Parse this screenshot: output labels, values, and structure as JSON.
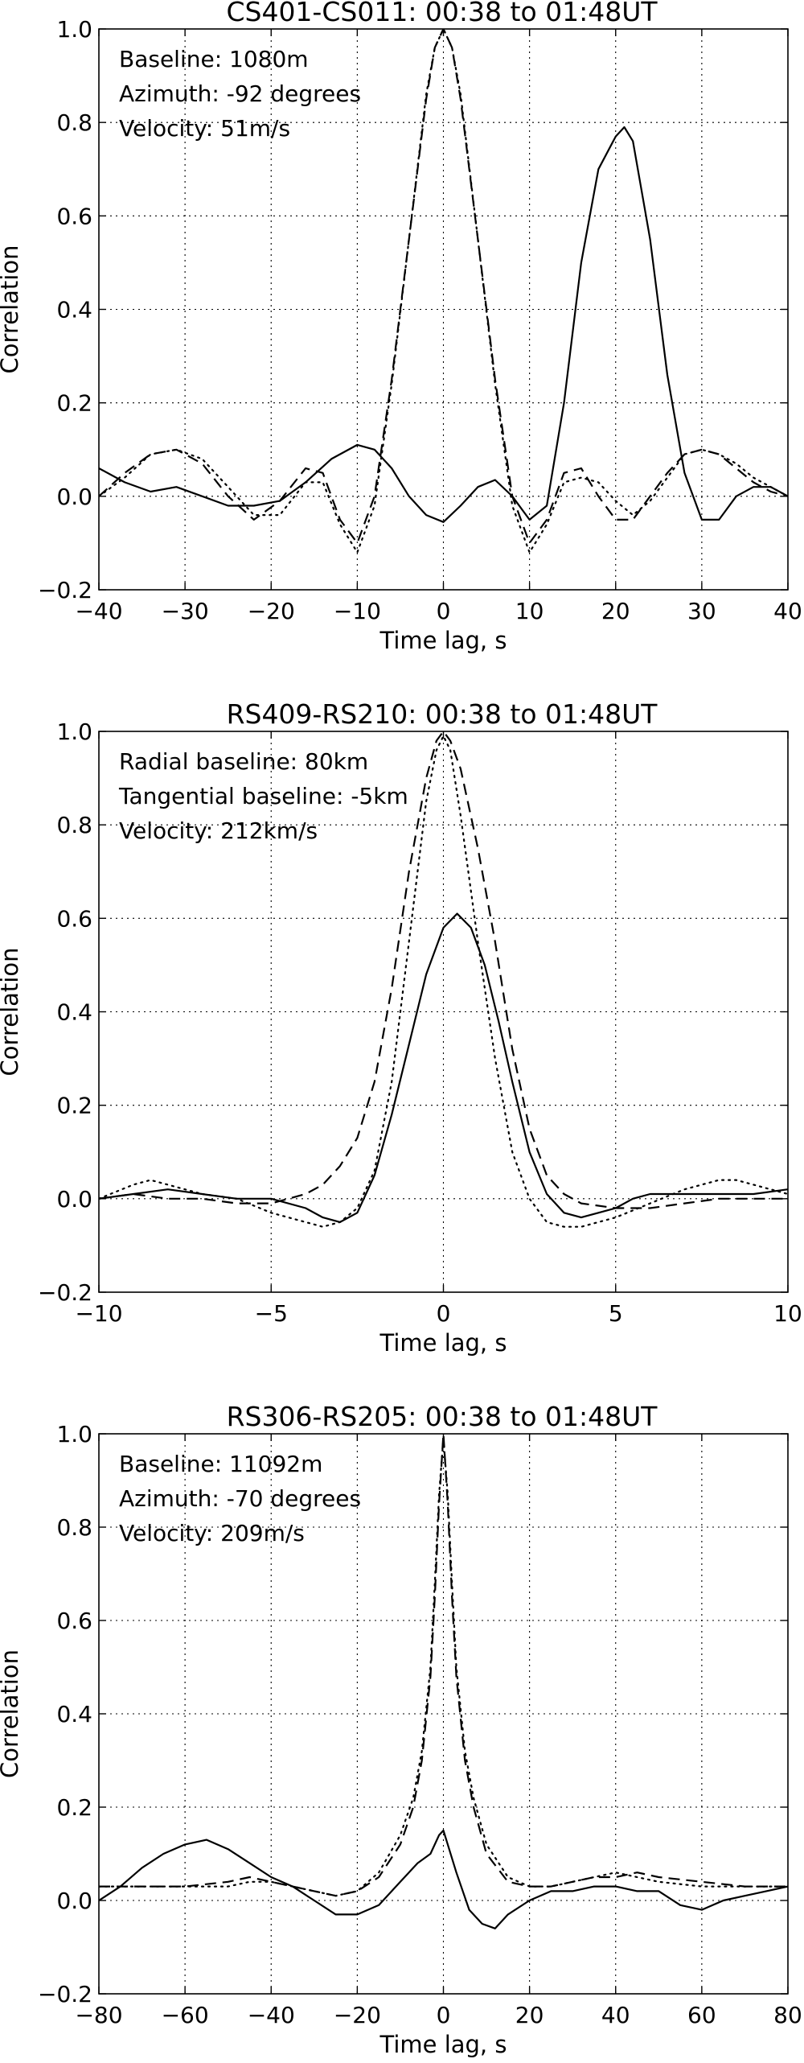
{
  "chart_data": [
    {
      "type": "line",
      "title": "CS401-CS011: 00:38 to 01:48UT",
      "xlabel": "Time lag, s",
      "ylabel": "Correlation",
      "xlim": [
        -40,
        40
      ],
      "ylim": [
        -0.2,
        1.0
      ],
      "xticks": [
        "−40",
        "−30",
        "−20",
        "−10",
        "0",
        "10",
        "20",
        "30",
        "40"
      ],
      "yticks": [
        "−0.2",
        "0.0",
        "0.2",
        "0.4",
        "0.6",
        "0.8",
        "1.0"
      ],
      "grid": true,
      "annotations": [
        "Baseline: 1080m",
        "Azimuth: -92 degrees",
        "Velocity: 51m/s"
      ],
      "series": [
        {
          "style": "solid",
          "x": [
            -40,
            -37,
            -34,
            -31,
            -28,
            -25,
            -22,
            -19,
            -16,
            -13,
            -10,
            -8,
            -6,
            -4,
            -2,
            0,
            2,
            4,
            6,
            8,
            10,
            12,
            14,
            16,
            18,
            20,
            21,
            22,
            24,
            26,
            28,
            30,
            32,
            34,
            36,
            38,
            40
          ],
          "y": [
            0.06,
            0.03,
            0.01,
            0.02,
            0.0,
            -0.02,
            -0.02,
            -0.01,
            0.03,
            0.08,
            0.11,
            0.1,
            0.06,
            0.0,
            -0.04,
            -0.055,
            -0.02,
            0.02,
            0.035,
            0.0,
            -0.05,
            -0.02,
            0.2,
            0.5,
            0.7,
            0.77,
            0.79,
            0.76,
            0.55,
            0.26,
            0.05,
            -0.05,
            -0.05,
            0.0,
            0.02,
            0.02,
            0.0
          ]
        },
        {
          "style": "dashed",
          "x": [
            -40,
            -37,
            -34,
            -31,
            -28,
            -25,
            -22,
            -19,
            -16,
            -14,
            -12,
            -10,
            -8,
            -6,
            -4,
            -2,
            -1,
            0,
            1,
            2,
            4,
            6,
            8,
            10,
            12,
            14,
            16,
            18,
            20,
            22,
            24,
            26,
            28,
            30,
            32,
            34,
            36,
            38,
            40
          ],
          "y": [
            0.0,
            0.05,
            0.09,
            0.1,
            0.07,
            0.0,
            -0.05,
            -0.01,
            0.06,
            0.05,
            -0.05,
            -0.1,
            0.0,
            0.25,
            0.55,
            0.85,
            0.96,
            1.0,
            0.96,
            0.85,
            0.55,
            0.25,
            0.0,
            -0.1,
            -0.05,
            0.05,
            0.06,
            0.0,
            -0.05,
            -0.05,
            0.0,
            0.05,
            0.09,
            0.1,
            0.09,
            0.06,
            0.03,
            0.01,
            0.0
          ]
        },
        {
          "style": "dotted",
          "x": [
            -40,
            -37,
            -34,
            -31,
            -28,
            -25,
            -22,
            -19,
            -16,
            -14,
            -12,
            -10,
            -8,
            -6,
            -4,
            -2,
            -1,
            0,
            1,
            2,
            4,
            6,
            8,
            10,
            12,
            14,
            16,
            18,
            20,
            22,
            24,
            26,
            28,
            30,
            32,
            34,
            36,
            38,
            40
          ],
          "y": [
            0.0,
            0.04,
            0.09,
            0.1,
            0.08,
            0.02,
            -0.04,
            -0.04,
            0.03,
            0.03,
            -0.06,
            -0.12,
            -0.02,
            0.24,
            0.55,
            0.86,
            0.96,
            1.0,
            0.96,
            0.86,
            0.55,
            0.24,
            -0.02,
            -0.12,
            -0.06,
            0.03,
            0.04,
            0.03,
            -0.01,
            -0.04,
            -0.01,
            0.04,
            0.09,
            0.1,
            0.09,
            0.07,
            0.04,
            0.02,
            0.0
          ]
        }
      ]
    },
    {
      "type": "line",
      "title": "RS409-RS210: 00:38 to 01:48UT",
      "xlabel": "Time lag, s",
      "ylabel": "Correlation",
      "xlim": [
        -10,
        10
      ],
      "ylim": [
        -0.2,
        1.0
      ],
      "xticks": [
        "−10",
        "−5",
        "0",
        "5",
        "10"
      ],
      "yticks": [
        "−0.2",
        "0.0",
        "0.2",
        "0.4",
        "0.6",
        "0.8",
        "1.0"
      ],
      "grid": true,
      "annotations": [
        "Radial baseline: 80km",
        "Tangential baseline: -5km",
        "Velocity: 212km/s"
      ],
      "series": [
        {
          "style": "solid",
          "x": [
            -10,
            -9,
            -8,
            -7,
            -6,
            -5,
            -4,
            -3.5,
            -3,
            -2.5,
            -2,
            -1.5,
            -1,
            -0.5,
            0,
            0.4,
            0.8,
            1.2,
            1.6,
            2,
            2.5,
            3,
            3.5,
            4,
            4.5,
            5,
            5.5,
            6,
            7,
            8,
            9,
            10
          ],
          "y": [
            0.0,
            0.01,
            0.02,
            0.01,
            0.0,
            0.0,
            -0.02,
            -0.04,
            -0.05,
            -0.03,
            0.05,
            0.18,
            0.33,
            0.48,
            0.58,
            0.61,
            0.58,
            0.5,
            0.38,
            0.25,
            0.1,
            0.01,
            -0.03,
            -0.04,
            -0.03,
            -0.02,
            0.0,
            0.01,
            0.01,
            0.01,
            0.01,
            0.02
          ]
        },
        {
          "style": "dashed",
          "x": [
            -10,
            -9,
            -8,
            -7,
            -6,
            -5,
            -4,
            -3.5,
            -3,
            -2.5,
            -2,
            -1.5,
            -1,
            -0.5,
            -0.2,
            0,
            0.2,
            0.5,
            1,
            1.5,
            2,
            2.5,
            3,
            3.5,
            4,
            5,
            6,
            7,
            8,
            9,
            10
          ],
          "y": [
            0.0,
            0.01,
            0.0,
            0.0,
            -0.01,
            -0.01,
            0.01,
            0.03,
            0.07,
            0.13,
            0.25,
            0.45,
            0.7,
            0.9,
            0.98,
            1.0,
            0.98,
            0.92,
            0.75,
            0.55,
            0.32,
            0.15,
            0.05,
            0.01,
            -0.01,
            -0.02,
            -0.02,
            -0.01,
            0.0,
            0.0,
            0.0
          ]
        },
        {
          "style": "dotted",
          "x": [
            -10,
            -9,
            -8.5,
            -8,
            -7,
            -6,
            -5,
            -4,
            -3.5,
            -3,
            -2.5,
            -2,
            -1.5,
            -1,
            -0.5,
            -0.2,
            0,
            0.2,
            0.5,
            1,
            1.5,
            2,
            2.5,
            3,
            3.5,
            4,
            5,
            6,
            7,
            8,
            8.5,
            9,
            10
          ],
          "y": [
            0.0,
            0.03,
            0.04,
            0.03,
            0.01,
            0.0,
            -0.03,
            -0.05,
            -0.06,
            -0.05,
            -0.02,
            0.06,
            0.25,
            0.55,
            0.85,
            0.96,
            0.99,
            0.96,
            0.82,
            0.55,
            0.3,
            0.1,
            0.0,
            -0.05,
            -0.06,
            -0.06,
            -0.04,
            -0.01,
            0.02,
            0.04,
            0.04,
            0.03,
            0.01
          ]
        }
      ]
    },
    {
      "type": "line",
      "title": "RS306-RS205: 00:38 to 01:48UT",
      "xlabel": "Time lag, s",
      "ylabel": "Correlation",
      "xlim": [
        -80,
        80
      ],
      "ylim": [
        -0.2,
        1.0
      ],
      "xticks": [
        "−80",
        "−60",
        "−40",
        "−20",
        "0",
        "20",
        "40",
        "60",
        "80"
      ],
      "yticks": [
        "−0.2",
        "0.0",
        "0.2",
        "0.4",
        "0.6",
        "0.8",
        "1.0"
      ],
      "grid": true,
      "annotations": [
        "Baseline: 11092m",
        "Azimuth: -70 degrees",
        "Velocity: 209m/s"
      ],
      "series": [
        {
          "style": "solid",
          "x": [
            -80,
            -75,
            -70,
            -65,
            -60,
            -55,
            -50,
            -45,
            -40,
            -35,
            -30,
            -25,
            -20,
            -15,
            -10,
            -6,
            -3,
            -1,
            0,
            1,
            3,
            6,
            9,
            12,
            15,
            20,
            25,
            30,
            35,
            40,
            45,
            50,
            55,
            60,
            65,
            70,
            75,
            80
          ],
          "y": [
            0.0,
            0.03,
            0.07,
            0.1,
            0.12,
            0.13,
            0.11,
            0.08,
            0.05,
            0.03,
            0.0,
            -0.03,
            -0.03,
            -0.01,
            0.04,
            0.08,
            0.1,
            0.14,
            0.15,
            0.12,
            0.06,
            -0.02,
            -0.05,
            -0.06,
            -0.03,
            0.0,
            0.02,
            0.02,
            0.03,
            0.03,
            0.02,
            0.02,
            -0.01,
            -0.02,
            0.0,
            0.01,
            0.02,
            0.03
          ]
        },
        {
          "style": "dashed",
          "x": [
            -80,
            -70,
            -60,
            -50,
            -45,
            -40,
            -35,
            -30,
            -25,
            -20,
            -15,
            -10,
            -7,
            -5,
            -3,
            -2,
            -1,
            0,
            1,
            2,
            3,
            5,
            7,
            10,
            15,
            20,
            25,
            30,
            35,
            40,
            45,
            50,
            60,
            70,
            80
          ],
          "y": [
            0.03,
            0.03,
            0.03,
            0.04,
            0.05,
            0.04,
            0.03,
            0.02,
            0.01,
            0.02,
            0.05,
            0.12,
            0.2,
            0.3,
            0.48,
            0.65,
            0.85,
            1.0,
            0.85,
            0.65,
            0.48,
            0.3,
            0.2,
            0.1,
            0.04,
            0.03,
            0.03,
            0.04,
            0.05,
            0.05,
            0.06,
            0.05,
            0.04,
            0.03,
            0.03
          ]
        },
        {
          "style": "dotted",
          "x": [
            -80,
            -70,
            -60,
            -50,
            -45,
            -40,
            -35,
            -30,
            -25,
            -20,
            -15,
            -10,
            -7,
            -5,
            -3,
            -2,
            -1,
            0,
            1,
            2,
            3,
            5,
            7,
            10,
            15,
            20,
            25,
            30,
            35,
            40,
            45,
            50,
            60,
            70,
            80
          ],
          "y": [
            0.03,
            0.03,
            0.03,
            0.03,
            0.04,
            0.04,
            0.03,
            0.02,
            0.01,
            0.02,
            0.06,
            0.14,
            0.22,
            0.32,
            0.5,
            0.68,
            0.87,
            0.99,
            0.87,
            0.68,
            0.5,
            0.32,
            0.22,
            0.12,
            0.05,
            0.03,
            0.03,
            0.04,
            0.05,
            0.06,
            0.05,
            0.04,
            0.03,
            0.03,
            0.03
          ]
        }
      ]
    }
  ]
}
